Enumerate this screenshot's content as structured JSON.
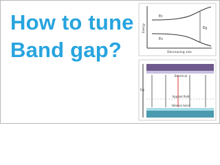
{
  "title": {
    "line1": "How to tune",
    "line2": "Band gap?"
  },
  "top_diagram": {
    "y_axis": "Energy",
    "x_axis": "Decreasing size",
    "conduction": "Ec",
    "gap": "Eg",
    "valence": "Ev"
  },
  "bottom_diagram": {
    "top_band": "Electrical",
    "field": "Applied field",
    "bottom_band": "Valence band",
    "gap": "Eg"
  }
}
